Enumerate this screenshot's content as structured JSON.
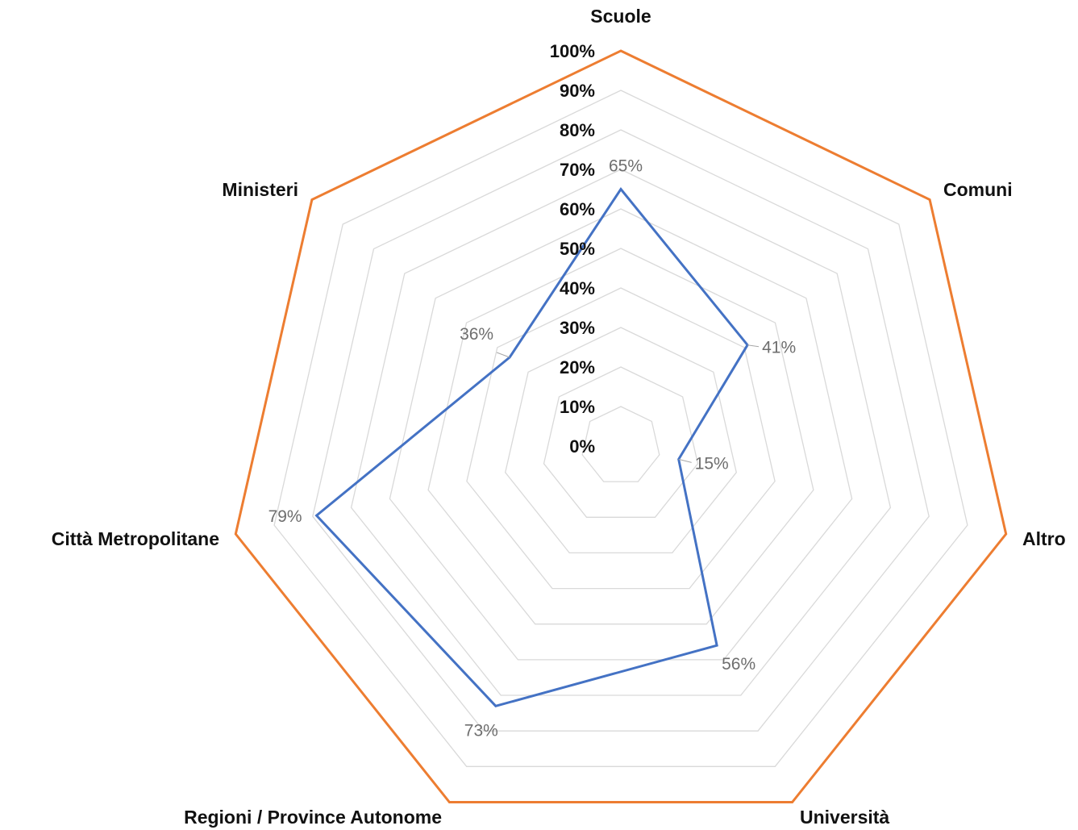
{
  "chart_data": {
    "type": "radar",
    "categories": [
      "Scuole",
      "Comuni",
      "Altro",
      "Università",
      "Regioni / Province Autonome",
      "Città Metropolitane",
      "Ministeri"
    ],
    "series": [
      {
        "values": [
          65,
          41,
          15,
          56,
          73,
          79,
          36
        ],
        "color": "#4472c4"
      }
    ],
    "data_labels": [
      "65%",
      "41%",
      "15%",
      "56%",
      "73%",
      "79%",
      "36%"
    ],
    "radial_ticks": [
      "0%",
      "10%",
      "20%",
      "30%",
      "40%",
      "50%",
      "60%",
      "70%",
      "80%",
      "90%",
      "100%"
    ],
    "range": [
      0,
      100
    ],
    "grid": true,
    "outer_ring_color": "#ed7d31",
    "grid_color": "#d9d9d9",
    "legend": "none"
  }
}
